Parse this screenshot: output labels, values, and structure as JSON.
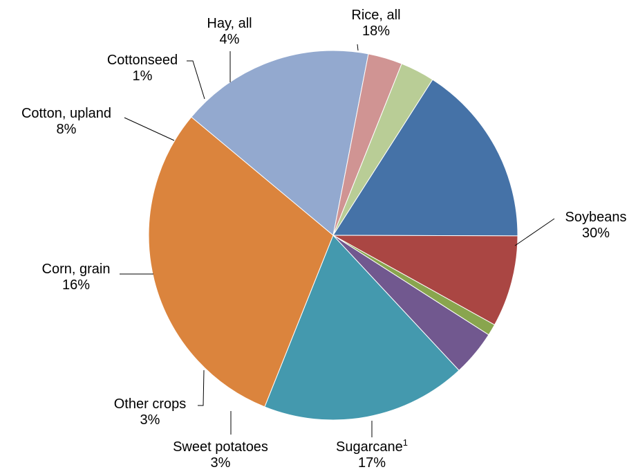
{
  "chart_data": {
    "type": "pie",
    "start_angle_deg": 137,
    "direction": "clockwise",
    "slices": [
      {
        "label": "Rice, all",
        "value": 18,
        "value_label": "18%",
        "color": "#4499AE"
      },
      {
        "label": "Soybeans",
        "value": 30,
        "value_label": "30%",
        "color": "#DB843D"
      },
      {
        "label": "Sugarcane",
        "label_sup": "1",
        "value": 17,
        "value_label": "17%",
        "color": "#93A9CF"
      },
      {
        "label": "Sweet potatoes",
        "value": 3,
        "value_label": "3%",
        "color": "#D09493"
      },
      {
        "label": "Other crops",
        "value": 3,
        "value_label": "3%",
        "color": "#B9CD96"
      },
      {
        "label": "Corn, grain",
        "value": 16,
        "value_label": "16%",
        "color": "#4572A7"
      },
      {
        "label": "Cotton, upland",
        "value": 8,
        "value_label": "8%",
        "color": "#AA4643"
      },
      {
        "label": "Cottonseed",
        "value": 1,
        "value_label": "1%",
        "color": "#89A54E"
      },
      {
        "label": "Hay, all",
        "value": 4,
        "value_label": "4%",
        "color": "#71588F"
      }
    ]
  }
}
